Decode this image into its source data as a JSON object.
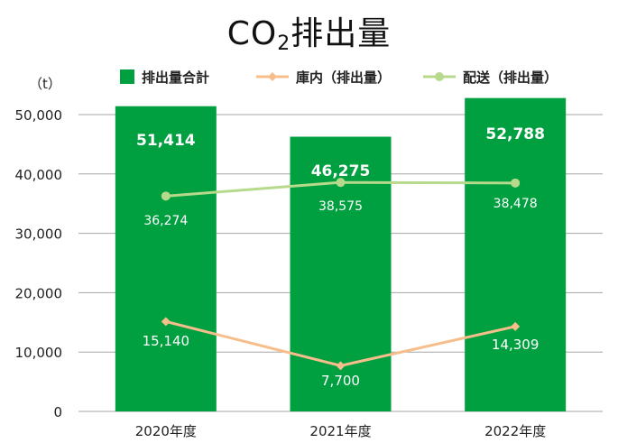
{
  "chart_data": {
    "type": "bar",
    "title": {
      "main": "CO",
      "subscript": "2",
      "rest": "排出量"
    },
    "unit_label": "（t）",
    "categories": [
      "2020年度",
      "2021年度",
      "2022年度"
    ],
    "ylim": [
      0,
      50000
    ],
    "yticks": [
      0,
      10000,
      20000,
      30000,
      40000,
      50000
    ],
    "ytick_labels": [
      "0",
      "10,000",
      "20,000",
      "30,000",
      "40,000",
      "50,000"
    ],
    "grid": true,
    "legend_position": "top",
    "series": [
      {
        "name": "排出量合計",
        "kind": "bar",
        "color": "#00a040",
        "values": [
          51414,
          46275,
          52788
        ],
        "labels": [
          "51,414",
          "46,275",
          "52,788"
        ]
      },
      {
        "name": "庫内（排出量）",
        "kind": "line",
        "color": "#f7be8c",
        "values": [
          15140,
          7700,
          14309
        ],
        "labels": [
          "15,140",
          "7,700",
          "14,309"
        ]
      },
      {
        "name": "配送（排出量）",
        "kind": "line",
        "color": "#b7d98c",
        "values": [
          36274,
          38575,
          38478
        ],
        "labels": [
          "36,274",
          "38,575",
          "38,478"
        ]
      }
    ]
  }
}
